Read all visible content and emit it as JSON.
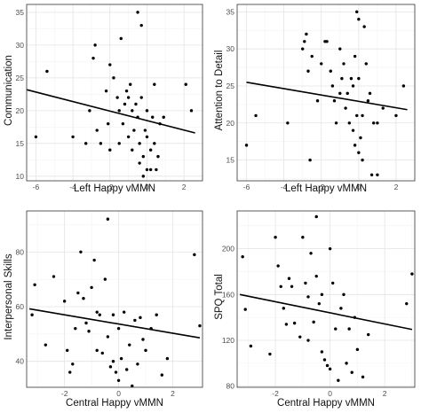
{
  "chart_data": [
    {
      "type": "scatter",
      "xlabel": "Left Happy vMMN",
      "ylabel": "Communication",
      "xlim": [
        -6.5,
        3.0
      ],
      "ylim": [
        9.3,
        36.2
      ],
      "xticks": [
        -6,
        -4,
        -2,
        0,
        2
      ],
      "yticks": [
        10,
        15,
        20,
        25,
        30,
        35
      ],
      "grid": true,
      "fit_line": {
        "x": [
          -6.5,
          2.6
        ],
        "y": [
          23.2,
          16.6
        ]
      },
      "points": [
        [
          -6.0,
          16
        ],
        [
          -5.4,
          26
        ],
        [
          -4.0,
          16
        ],
        [
          -3.3,
          15
        ],
        [
          -3.1,
          20
        ],
        [
          -2.9,
          28
        ],
        [
          -2.8,
          30
        ],
        [
          -2.7,
          17
        ],
        [
          -2.5,
          15
        ],
        [
          -2.2,
          23
        ],
        [
          -2.1,
          18
        ],
        [
          -2.0,
          14
        ],
        [
          -2.0,
          27
        ],
        [
          -1.8,
          25
        ],
        [
          -1.6,
          22
        ],
        [
          -1.5,
          20
        ],
        [
          -1.5,
          15
        ],
        [
          -1.4,
          31
        ],
        [
          -1.3,
          18
        ],
        [
          -1.2,
          21
        ],
        [
          -1.1,
          23
        ],
        [
          -1.0,
          22
        ],
        [
          -1.0,
          16
        ],
        [
          -0.9,
          24
        ],
        [
          -0.8,
          14
        ],
        [
          -0.8,
          20
        ],
        [
          -0.7,
          17
        ],
        [
          -0.6,
          21
        ],
        [
          -0.5,
          19
        ],
        [
          -0.5,
          35
        ],
        [
          -0.4,
          12
        ],
        [
          -0.4,
          15
        ],
        [
          -0.3,
          22
        ],
        [
          -0.3,
          33
        ],
        [
          -0.2,
          10
        ],
        [
          -0.2,
          13
        ],
        [
          -0.1,
          17
        ],
        [
          0.0,
          20
        ],
        [
          0.0,
          11
        ],
        [
          0.0,
          16
        ],
        [
          0.2,
          14
        ],
        [
          0.2,
          11
        ],
        [
          0.3,
          19
        ],
        [
          0.4,
          24
        ],
        [
          0.4,
          15
        ],
        [
          0.5,
          11
        ],
        [
          0.6,
          13
        ],
        [
          0.7,
          18
        ],
        [
          0.9,
          19
        ],
        [
          2.1,
          24
        ],
        [
          2.4,
          20
        ]
      ]
    },
    {
      "type": "scatter",
      "xlabel": "Left Happy vMMN",
      "ylabel": "Attention to Detail",
      "xlim": [
        -6.5,
        3.0
      ],
      "ylim": [
        12.2,
        36.0
      ],
      "xticks": [
        -6,
        -4,
        -2,
        0,
        2
      ],
      "yticks": [
        15,
        20,
        25,
        30,
        35
      ],
      "grid": true,
      "fit_line": {
        "x": [
          -6.0,
          2.6
        ],
        "y": [
          25.5,
          21.8
        ]
      },
      "points": [
        [
          -6.0,
          17
        ],
        [
          -5.5,
          21
        ],
        [
          -3.8,
          20
        ],
        [
          -3.0,
          30
        ],
        [
          -2.9,
          31
        ],
        [
          -2.8,
          32
        ],
        [
          -2.7,
          27
        ],
        [
          -2.6,
          15
        ],
        [
          -2.5,
          29
        ],
        [
          -2.2,
          23
        ],
        [
          -2.0,
          28
        ],
        [
          -1.8,
          31
        ],
        [
          -1.7,
          31
        ],
        [
          -1.5,
          27
        ],
        [
          -1.4,
          25
        ],
        [
          -1.3,
          23
        ],
        [
          -1.2,
          20
        ],
        [
          -1.0,
          30
        ],
        [
          -1.0,
          24
        ],
        [
          -0.9,
          26
        ],
        [
          -0.8,
          28
        ],
        [
          -0.7,
          22
        ],
        [
          -0.6,
          24
        ],
        [
          -0.5,
          20
        ],
        [
          -0.4,
          26
        ],
        [
          -0.3,
          25
        ],
        [
          -0.3,
          19
        ],
        [
          -0.2,
          17
        ],
        [
          -0.2,
          29
        ],
        [
          -0.1,
          35
        ],
        [
          -0.1,
          21
        ],
        [
          0.0,
          34
        ],
        [
          0.0,
          26
        ],
        [
          0.0,
          16
        ],
        [
          0.1,
          18
        ],
        [
          0.2,
          21
        ],
        [
          0.2,
          15
        ],
        [
          0.3,
          33
        ],
        [
          0.4,
          28
        ],
        [
          0.5,
          23
        ],
        [
          0.6,
          24
        ],
        [
          0.7,
          13
        ],
        [
          0.8,
          20
        ],
        [
          1.0,
          13
        ],
        [
          1.0,
          20
        ],
        [
          1.3,
          22
        ],
        [
          2.0,
          21
        ],
        [
          2.4,
          25
        ]
      ]
    },
    {
      "type": "scatter",
      "xlabel": "Central Happy vMMN",
      "ylabel": "Interpersonal Skills",
      "xlim": [
        -3.4,
        3.1
      ],
      "ylim": [
        30.5,
        95.0
      ],
      "xticks": [
        -2,
        0,
        2
      ],
      "yticks": [
        40,
        60,
        80
      ],
      "grid": true,
      "fit_line": {
        "x": [
          -3.3,
          3.0
        ],
        "y": [
          59.2,
          48.6
        ]
      },
      "points": [
        [
          -3.2,
          57
        ],
        [
          -3.1,
          68
        ],
        [
          -2.7,
          46
        ],
        [
          -2.4,
          71
        ],
        [
          -2.0,
          62
        ],
        [
          -1.9,
          44
        ],
        [
          -1.8,
          36
        ],
        [
          -1.7,
          39
        ],
        [
          -1.6,
          52
        ],
        [
          -1.5,
          65
        ],
        [
          -1.4,
          80
        ],
        [
          -1.3,
          63
        ],
        [
          -1.2,
          54
        ],
        [
          -1.1,
          51
        ],
        [
          -1.0,
          67
        ],
        [
          -0.9,
          77
        ],
        [
          -0.8,
          58
        ],
        [
          -0.8,
          44
        ],
        [
          -0.7,
          57
        ],
        [
          -0.6,
          43
        ],
        [
          -0.5,
          70
        ],
        [
          -0.4,
          49
        ],
        [
          -0.3,
          38
        ],
        [
          -0.2,
          57
        ],
        [
          -0.2,
          40
        ],
        [
          -0.1,
          36
        ],
        [
          0.0,
          52
        ],
        [
          0.0,
          33
        ],
        [
          0.1,
          41
        ],
        [
          0.2,
          58
        ],
        [
          0.3,
          37
        ],
        [
          0.4,
          46
        ],
        [
          0.5,
          31
        ],
        [
          0.6,
          55
        ],
        [
          0.7,
          39
        ],
        [
          0.8,
          56
        ],
        [
          0.9,
          48
        ],
        [
          1.0,
          44
        ],
        [
          1.2,
          52
        ],
        [
          1.4,
          57
        ],
        [
          1.6,
          35
        ],
        [
          1.8,
          41
        ],
        [
          2.8,
          79
        ],
        [
          3.0,
          53
        ],
        [
          -0.4,
          92
        ]
      ]
    },
    {
      "type": "scatter",
      "xlabel": "Central Happy vMMN",
      "ylabel": "SPQ Total",
      "xlim": [
        -3.4,
        3.1
      ],
      "ylim": [
        79.0,
        233.0
      ],
      "xticks": [
        -2,
        0,
        2
      ],
      "yticks": [
        80,
        120,
        160,
        200
      ],
      "grid": true,
      "fit_line": {
        "x": [
          -3.3,
          3.0
        ],
        "y": [
          160.0,
          129.5
        ]
      },
      "points": [
        [
          -3.2,
          193
        ],
        [
          -3.1,
          147
        ],
        [
          -2.9,
          115
        ],
        [
          -2.2,
          108
        ],
        [
          -2.0,
          210
        ],
        [
          -1.9,
          185
        ],
        [
          -1.8,
          167
        ],
        [
          -1.7,
          148
        ],
        [
          -1.6,
          134
        ],
        [
          -1.5,
          174
        ],
        [
          -1.4,
          167
        ],
        [
          -1.3,
          135
        ],
        [
          -1.1,
          123
        ],
        [
          -1.0,
          210
        ],
        [
          -0.9,
          170
        ],
        [
          -0.8,
          158
        ],
        [
          -0.8,
          120
        ],
        [
          -0.7,
          196
        ],
        [
          -0.6,
          136
        ],
        [
          -0.5,
          176
        ],
        [
          -0.4,
          152
        ],
        [
          -0.3,
          160
        ],
        [
          -0.3,
          110
        ],
        [
          -0.2,
          103
        ],
        [
          -0.1,
          98
        ],
        [
          0.0,
          95
        ],
        [
          0.0,
          200
        ],
        [
          0.1,
          170
        ],
        [
          0.2,
          130
        ],
        [
          0.3,
          85
        ],
        [
          0.4,
          148
        ],
        [
          0.5,
          160
        ],
        [
          0.6,
          100
        ],
        [
          0.7,
          130
        ],
        [
          0.8,
          92
        ],
        [
          0.9,
          140
        ],
        [
          1.0,
          112
        ],
        [
          1.2,
          88
        ],
        [
          1.4,
          125
        ],
        [
          2.8,
          152
        ],
        [
          3.0,
          178
        ],
        [
          -0.5,
          228
        ]
      ]
    }
  ]
}
